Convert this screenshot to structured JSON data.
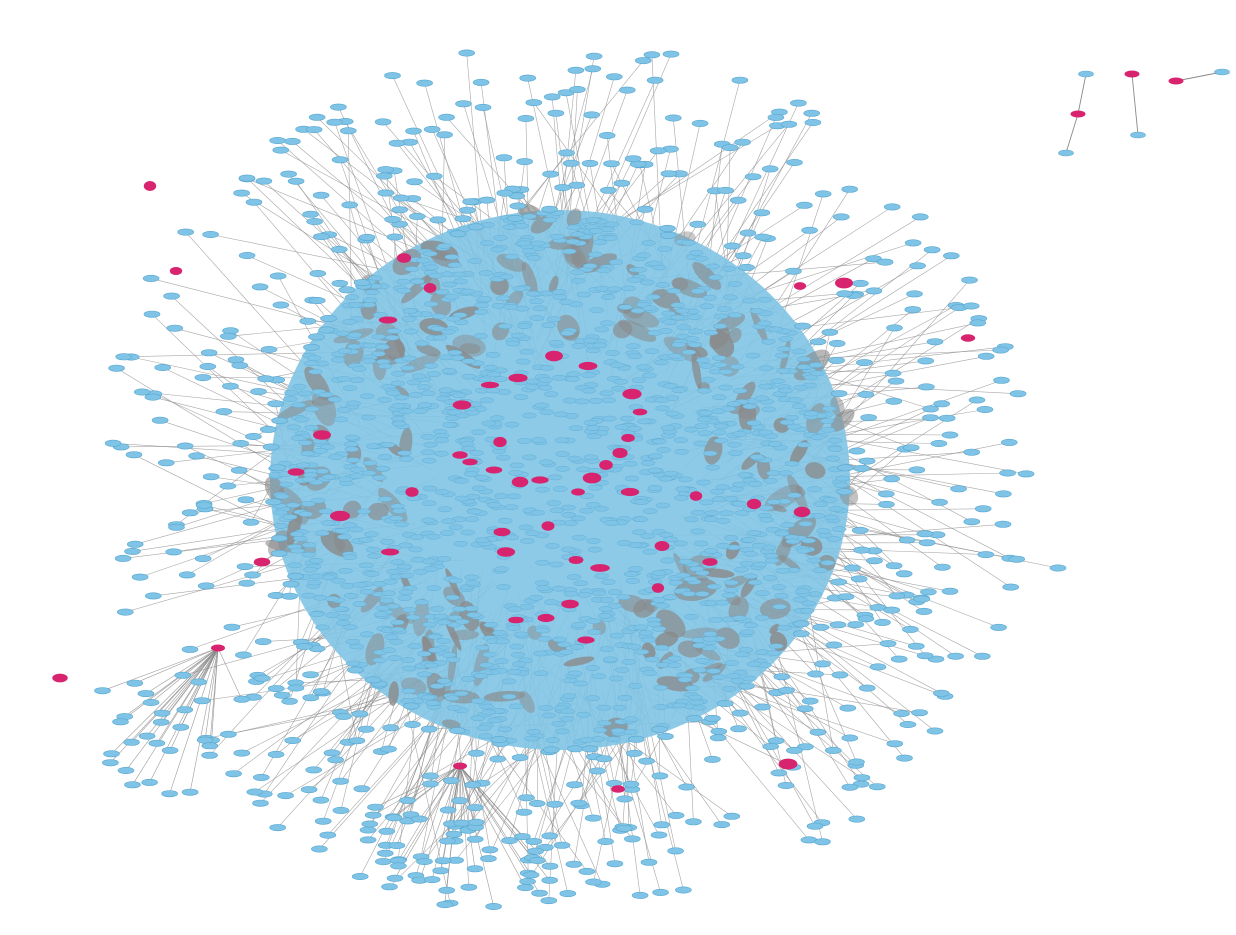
{
  "diagram": {
    "type": "network",
    "node_shape": "ellipse",
    "colors": {
      "background": "#ffffff",
      "node": "#7fc4e6",
      "node_stroke": "#5aa8cf",
      "highlight_node": "#d8246e",
      "edge": "#8a8a8a"
    },
    "components": [
      {
        "name": "main-cluster",
        "highlighted_nodes_present": true
      },
      {
        "name": "small-component-1",
        "edges": [
          [
            "pink",
            "blue"
          ]
        ]
      },
      {
        "name": "small-component-2",
        "edges": [
          [
            "pink",
            "blue"
          ]
        ]
      },
      {
        "name": "small-component-3",
        "edges": [
          [
            "pink",
            "blue"
          ]
        ]
      }
    ],
    "hub_fans": [
      {
        "name": "left-pink-hub-fan",
        "hub_color": "pink",
        "leaf_color": "blue"
      },
      {
        "name": "bottom-pink-hub-fan",
        "hub_color": "pink",
        "leaf_color": "blue"
      }
    ]
  }
}
